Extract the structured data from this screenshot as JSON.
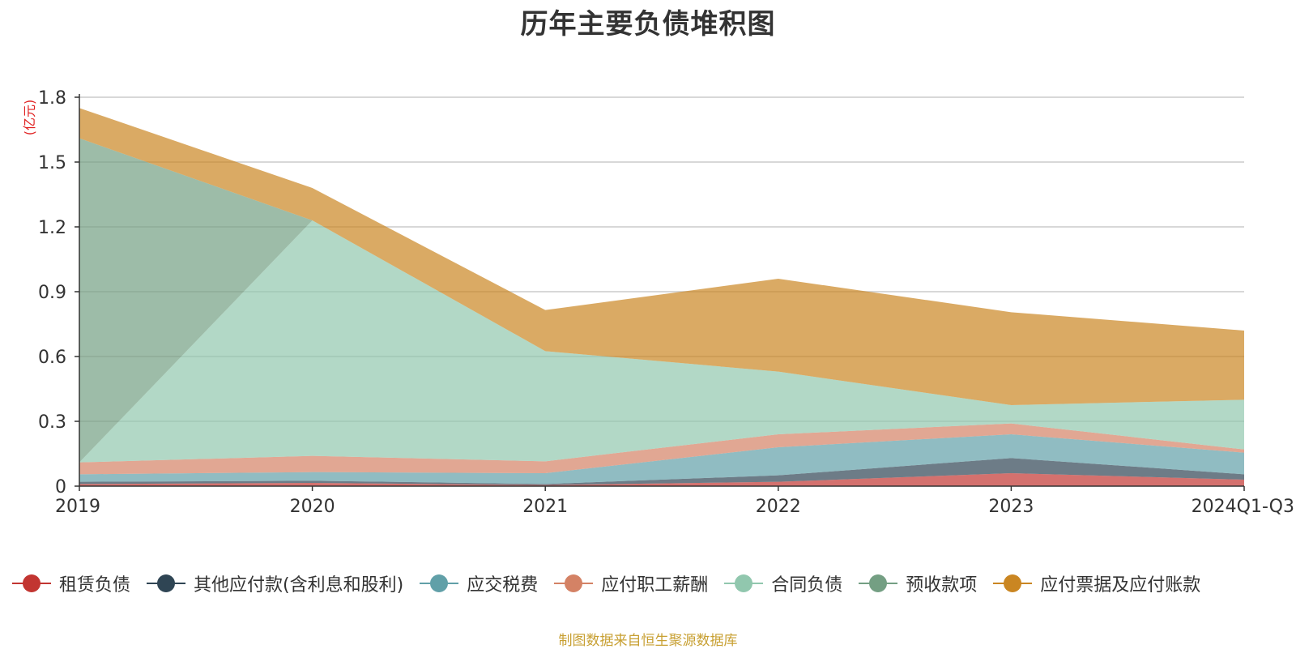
{
  "chart_data": {
    "type": "area",
    "stacked": true,
    "title": "历年主要负债堆积图",
    "ylabel": "(亿元)",
    "xlabel": "",
    "categories": [
      "2019",
      "2020",
      "2021",
      "2022",
      "2023",
      "2024Q1-Q3"
    ],
    "ylim": [
      0,
      1.8
    ],
    "yticks": [
      0,
      0.3,
      0.6,
      0.9,
      1.2,
      1.5,
      1.8
    ],
    "ytick_labels": [
      "0",
      "0.3",
      "0.6",
      "0.9",
      "1.2",
      "1.5",
      "1.8"
    ],
    "grid": true,
    "legend_position": "bottom",
    "series": [
      {
        "name": "租赁负债",
        "color": "#c23531",
        "values": [
          0.01,
          0.015,
          0.005,
          0.02,
          0.06,
          0.03
        ]
      },
      {
        "name": "其他应付款(含利息和股利)",
        "color": "#2f4554",
        "values": [
          0.01,
          0.01,
          0.005,
          0.03,
          0.07,
          0.025
        ]
      },
      {
        "name": "应交税费",
        "color": "#61a0a8",
        "values": [
          0.035,
          0.04,
          0.05,
          0.13,
          0.11,
          0.1
        ]
      },
      {
        "name": "应付职工薪酬",
        "color": "#d48265",
        "values": [
          0.055,
          0.075,
          0.055,
          0.06,
          0.05,
          0.015
        ]
      },
      {
        "name": "合同负债",
        "color": "#91c7ae",
        "values": [
          0,
          1.09,
          0.51,
          0.29,
          0.085,
          0.23
        ]
      },
      {
        "name": "预收款项",
        "color": "#749f83",
        "values": [
          1.5,
          0,
          0,
          0,
          0,
          0
        ]
      },
      {
        "name": "应付票据及应付账款",
        "color": "#ca8622",
        "values": [
          0.14,
          0.15,
          0.19,
          0.43,
          0.43,
          0.32
        ]
      }
    ]
  },
  "source_note": "制图数据来自恒生聚源数据库"
}
